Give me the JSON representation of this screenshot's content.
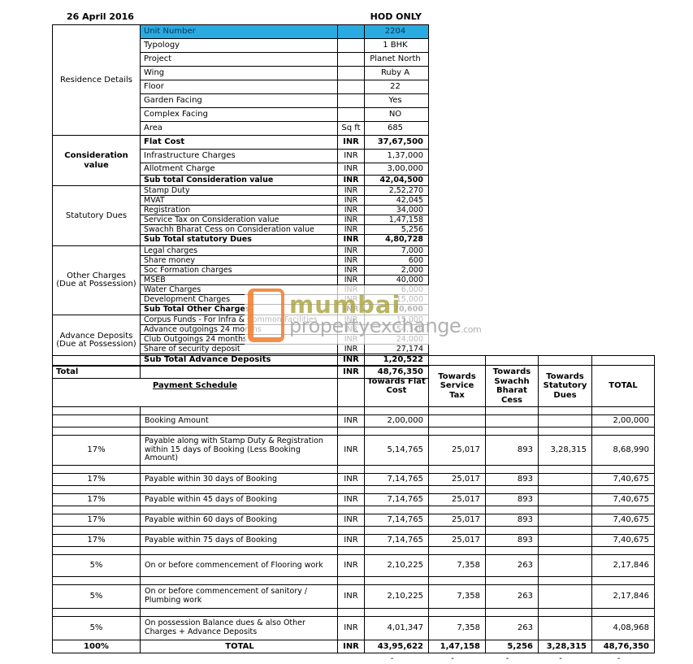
{
  "header": {
    "date": "26 April 2016",
    "hod": "HOD ONLY"
  },
  "colors": {
    "highlight_blue": "#29abe2",
    "watermark_olive": "#a8a23a",
    "watermark_gray": "#a9a9a9",
    "logo_orange": "#f07b2a"
  },
  "watermark": {
    "line1": "mumbai",
    "line2": "propertyexchange",
    "suffix": ".com"
  },
  "cost_sheet": {
    "sections": [
      {
        "category": "Residence Details",
        "rows": [
          {
            "label": "Unit Number",
            "unit": "",
            "value": "2204",
            "size": "t16",
            "highlight": true
          },
          {
            "label": "Typology",
            "unit": "",
            "value": "1 BHK",
            "size": "t16"
          },
          {
            "label": "Project",
            "unit": "",
            "value": "Planet North",
            "size": "t16"
          },
          {
            "label": "Wing",
            "unit": "",
            "value": "Ruby A",
            "size": "t16"
          },
          {
            "label": "Floor",
            "unit": "",
            "value": "22",
            "size": "t16"
          },
          {
            "label": "Garden Facing",
            "unit": "",
            "value": "Yes",
            "size": "t16"
          },
          {
            "label": "Complex Facing",
            "unit": "",
            "value": "NO",
            "size": "t16"
          },
          {
            "label": "Area",
            "unit": "Sq ft",
            "value": "685",
            "size": "t16"
          }
        ]
      },
      {
        "category": "Consideration value",
        "rows": [
          {
            "label": "Flat Cost",
            "unit": "INR",
            "value": "37,67,500",
            "size": "t16",
            "bold": true
          },
          {
            "label": "Infrastructure Charges",
            "unit": "INR",
            "value": "1,37,000",
            "size": "t16"
          },
          {
            "label": "Allotment Charge",
            "unit": "INR",
            "value": "3,00,000",
            "size": "t14"
          },
          {
            "label": "Sub total Consideration value",
            "unit": "INR",
            "value": "42,04,500",
            "size": "t12",
            "bold": true
          }
        ]
      },
      {
        "category": "Statutory Dues",
        "rows": [
          {
            "label": "Stamp Duty",
            "unit": "INR",
            "value": "2,52,270",
            "size": "t11"
          },
          {
            "label": "MVAT",
            "unit": "INR",
            "value": "42,045",
            "size": "t11"
          },
          {
            "label": "Registration",
            "unit": "INR",
            "value": "34,000",
            "size": "t11"
          },
          {
            "label": "Service Tax on Consideration value",
            "unit": "INR",
            "value": "1,47,158",
            "size": "t11"
          },
          {
            "label": "Swachh Bharat Cess on Consideration value",
            "unit": "INR",
            "value": "5,256",
            "size": "t11"
          },
          {
            "label": "Sub Total statutory Dues",
            "unit": "INR",
            "value": "4,80,728",
            "size": "t13",
            "bold": true
          }
        ]
      },
      {
        "category": "Other Charges (Due at Possession)",
        "rows": [
          {
            "label": "Legal charges",
            "unit": "INR",
            "value": "7,000",
            "size": "t11"
          },
          {
            "label": "Share money",
            "unit": "INR",
            "value": "600",
            "size": "t11"
          },
          {
            "label": "Soc Formation charges",
            "unit": "INR",
            "value": "2,000",
            "size": "t11"
          },
          {
            "label": "MSEB",
            "unit": "INR",
            "value": "40,000",
            "size": "t11"
          },
          {
            "label": "Water Charges",
            "unit": "INR",
            "value": "6,000",
            "size": "t11"
          },
          {
            "label": "Development Charges",
            "unit": "INR",
            "value": "15,000",
            "size": "t11"
          },
          {
            "label": "Sub Total Other Charges",
            "unit": "INR",
            "value": "70,600",
            "size": "t12",
            "bold": true
          }
        ]
      },
      {
        "category": "Advance Deposits (Due at Possession)",
        "rows": [
          {
            "label": "Corpus Funds - For Infra & Common Facilities",
            "unit": "INR",
            "value": "15,000",
            "size": "t11"
          },
          {
            "label": "Advance outgoings 24 months",
            "unit": "INR",
            "value": "54,348",
            "size": "t11"
          },
          {
            "label": "Club Outgoings 24 months",
            "unit": "INR",
            "value": "24,000",
            "size": "t11"
          },
          {
            "label": "Share of security deposit",
            "unit": "INR",
            "value": "27,174",
            "size": "t11"
          },
          {
            "label": "Sub Total Advance Deposits",
            "unit": "INR",
            "value": "1,20,522",
            "size": "t14",
            "bold": true
          }
        ]
      }
    ],
    "total": {
      "label": "Total",
      "unit": "INR",
      "value": "48,76,350"
    }
  },
  "payment_schedule": {
    "title": "Payment Schedule",
    "columns": [
      "Towards Flat Cost",
      "Towards Service Tax",
      "Towards Swachh Bharat Cess",
      "Towards Statutory Dues",
      "TOTAL"
    ],
    "rows": [
      {
        "pct": "",
        "desc": "Booking Amount",
        "unit": "INR",
        "flat": "2,00,000",
        "service": "",
        "cess": "",
        "statutory": "",
        "total": "2,00,000",
        "size": "r14"
      },
      {
        "pct": "17%",
        "desc": "Payable along with Stamp Duty & Registration within 15 days of Booking (Less Booking Amount)",
        "unit": "INR",
        "flat": "5,14,765",
        "service": "25,017",
        "cess": "893",
        "statutory": "3,28,315",
        "total": "8,68,990",
        "size": "r36"
      },
      {
        "pct": "17%",
        "desc": "Payable within 30 days of Booking",
        "unit": "INR",
        "flat": "7,14,765",
        "service": "25,017",
        "cess": "893",
        "statutory": "",
        "total": "7,40,675",
        "size": "r14"
      },
      {
        "pct": "17%",
        "desc": "Payable within 45 days of Booking",
        "unit": "INR",
        "flat": "7,14,765",
        "service": "25,017",
        "cess": "893",
        "statutory": "",
        "total": "7,40,675",
        "size": "r14"
      },
      {
        "pct": "17%",
        "desc": "Payable within 60 days of Booking",
        "unit": "INR",
        "flat": "7,14,765",
        "service": "25,017",
        "cess": "893",
        "statutory": "",
        "total": "7,40,675",
        "size": "r14"
      },
      {
        "pct": "17%",
        "desc": "Payable within 75 days of Booking",
        "unit": "INR",
        "flat": "7,14,765",
        "service": "25,017",
        "cess": "893",
        "statutory": "",
        "total": "7,40,675",
        "size": "r14"
      },
      {
        "pct": "5%",
        "desc": "On or before commencement of Flooring work",
        "unit": "INR",
        "flat": "2,10,225",
        "service": "7,358",
        "cess": "263",
        "statutory": "",
        "total": "2,17,846",
        "size": "r26"
      },
      {
        "pct": "5%",
        "desc": "On or before commencement of sanitory / Plumbing work",
        "unit": "INR",
        "flat": "2,10,225",
        "service": "7,358",
        "cess": "263",
        "statutory": "",
        "total": "2,17,846",
        "size": "r28"
      },
      {
        "pct": "5%",
        "desc": "On possession Balance dues & also Other Charges + Advance Deposits",
        "unit": "INR",
        "flat": "4,01,347",
        "service": "7,358",
        "cess": "263",
        "statutory": "",
        "total": "4,08,968",
        "size": "r28"
      },
      {
        "pct": "100%",
        "desc": "TOTAL",
        "unit": "INR",
        "flat": "43,95,622",
        "service": "1,47,158",
        "cess": "5,256",
        "statutory": "3,28,315",
        "total": "48,76,350",
        "size": "r15",
        "bold": true,
        "flush": true,
        "is_total": true
      }
    ],
    "dashes": [
      "-",
      "-",
      "-",
      "-",
      "-"
    ]
  }
}
